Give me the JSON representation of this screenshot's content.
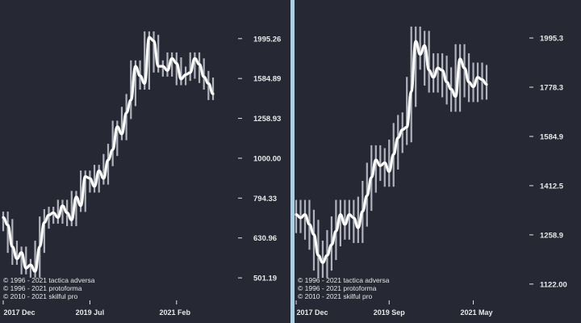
{
  "colors": {
    "background": "#262833",
    "divider": "#a9cfe6",
    "price_bars": "#c9ccd6",
    "line": "#ffffff",
    "text": "#e8e8e8"
  },
  "chart_data": [
    {
      "type": "line",
      "scale": "log",
      "title": "",
      "xlabel": "",
      "ylabel": "",
      "x_tick_labels": [
        "2017 Dec",
        "2019 Jul",
        "2021 Feb"
      ],
      "x_tick_positions_index": [
        0,
        19,
        38
      ],
      "y_ticks": [
        1995.26,
        1584.89,
        1258.93,
        1000.0,
        794.33,
        630.96,
        501.19
      ],
      "ylim": [
        440,
        2380
      ],
      "grid": false,
      "copyright": [
        "© 1996 - 2021 tactica adversa",
        "© 1996 - 2021 protoforma",
        "© 2010 - 2021 skilful pro"
      ],
      "series": [
        {
          "values": [
            710,
            680,
            600,
            560,
            580,
            530,
            540,
            520,
            600,
            690,
            720,
            730,
            710,
            760,
            730,
            700,
            800,
            760,
            900,
            890,
            850,
            930,
            890,
            990,
            1050,
            1200,
            1150,
            1300,
            1400,
            1700,
            1610,
            1540,
            2010,
            1970,
            1700,
            1700,
            1660,
            1780,
            1730,
            1580,
            1620,
            1640,
            1780,
            1720,
            1600,
            1540,
            1450
          ]
        }
      ]
    },
    {
      "type": "line",
      "scale": "log",
      "title": "",
      "xlabel": "",
      "ylabel": "",
      "x_tick_labels": [
        "2017 Dec",
        "2019 Sep",
        "2021 May"
      ],
      "x_tick_positions_index": [
        0,
        21,
        40
      ],
      "y_ticks": [
        1995.3,
        1778.3,
        1584.9,
        1412.5,
        1258.9,
        1122.0
      ],
      "ylim": [
        1080,
        2140
      ],
      "grid": false,
      "copyright": [
        "© 1996 - 2021 tactica adversa",
        "© 1996 - 2021 protoforma",
        "© 2010 - 2021 skilful pro"
      ],
      "series": [
        {
          "values": [
            1320,
            1310,
            1320,
            1290,
            1260,
            1200,
            1180,
            1200,
            1230,
            1270,
            1320,
            1290,
            1320,
            1310,
            1280,
            1330,
            1380,
            1440,
            1500,
            1480,
            1490,
            1460,
            1520,
            1580,
            1610,
            1620,
            1760,
            1980,
            1920,
            1960,
            1850,
            1820,
            1860,
            1850,
            1800,
            1770,
            1740,
            1900,
            1860,
            1800,
            1780,
            1820,
            1810,
            1790
          ]
        }
      ]
    }
  ]
}
